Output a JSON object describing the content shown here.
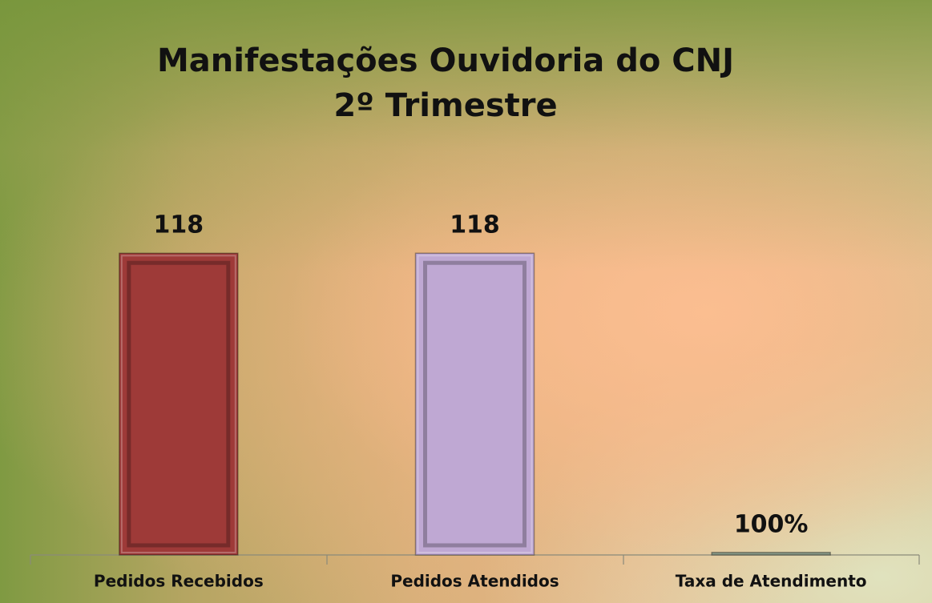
{
  "chart_data": {
    "type": "bar",
    "title": "Manifestações Ouvidoria do CNJ",
    "subtitle": "2º Trimestre",
    "categories": [
      "Pedidos Recebidos",
      "Pedidos Atendidos",
      "Taxa de Atendimento"
    ],
    "values": [
      118,
      118,
      1
    ],
    "value_labels": [
      "118",
      "118",
      "100%"
    ],
    "colors": [
      "#9e3a38",
      "#bfa8d3",
      "#8a9a88"
    ],
    "ylim": [
      0,
      140
    ]
  }
}
